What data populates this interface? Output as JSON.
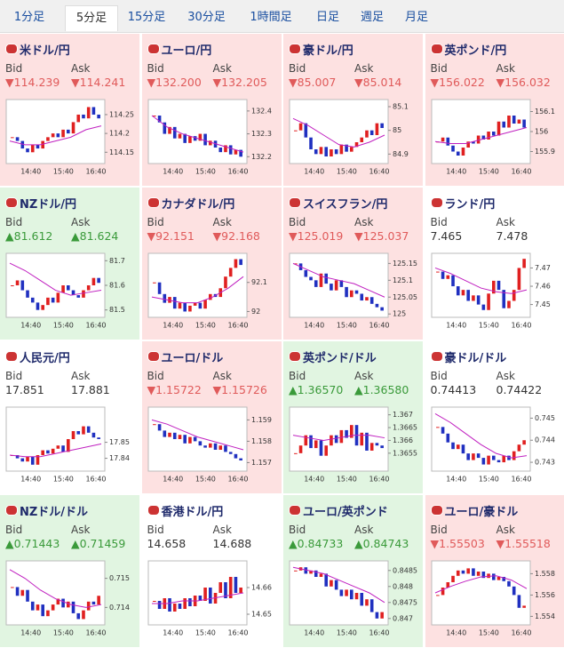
{
  "tabs": [
    "1分足",
    "5分足",
    "15分足",
    "30分足",
    "1時間足",
    "日足",
    "週足",
    "月足"
  ],
  "selected_tab": 1,
  "labels": {
    "bid": "Bid",
    "ask": "Ask"
  },
  "times": [
    "14:40",
    "15:40",
    "16:40"
  ],
  "tiles": [
    {
      "title": "米ドル/円",
      "bid": "▼114.239",
      "ask": "▼114.241",
      "trend": "down",
      "ylim": [
        114.12,
        114.29
      ],
      "yticks": [
        114.15,
        114.2,
        114.25
      ],
      "close": [
        114.19,
        114.18,
        114.16,
        114.15,
        114.17,
        114.16,
        114.18,
        114.19,
        114.2,
        114.19,
        114.21,
        114.2,
        114.23,
        114.25,
        114.24,
        114.27,
        114.25,
        114.24
      ],
      "ma": [
        114.18,
        114.17,
        114.17,
        114.18,
        114.19,
        114.21,
        114.22
      ]
    },
    {
      "title": "ユーロ/円",
      "bid": "▼132.200",
      "ask": "▼132.205",
      "trend": "down",
      "ylim": [
        132.17,
        132.45
      ],
      "yticks": [
        132.2,
        132.3,
        132.4
      ],
      "close": [
        132.38,
        132.35,
        132.3,
        132.33,
        132.28,
        132.3,
        132.26,
        132.29,
        132.27,
        132.3,
        132.25,
        132.27,
        132.24,
        132.22,
        132.25,
        132.21,
        132.23,
        132.2
      ],
      "ma": [
        132.38,
        132.33,
        132.3,
        132.28,
        132.26,
        132.24,
        132.22
      ]
    },
    {
      "title": "豪ドル/円",
      "bid": "▼85.007",
      "ask": "▼85.014",
      "trend": "down",
      "ylim": [
        84.86,
        85.13
      ],
      "yticks": [
        84.9,
        85,
        85.1
      ],
      "close": [
        85.0,
        85.03,
        84.97,
        84.92,
        84.9,
        84.93,
        84.89,
        84.92,
        84.9,
        84.94,
        84.91,
        84.93,
        84.95,
        84.97,
        85.0,
        84.98,
        85.03,
        85.01
      ],
      "ma": [
        85.05,
        85.02,
        84.98,
        84.94,
        84.93,
        84.95,
        84.98
      ]
    },
    {
      "title": "英ポンド/円",
      "bid": "▼156.022",
      "ask": "▼156.032",
      "trend": "down",
      "ylim": [
        155.84,
        156.16
      ],
      "yticks": [
        155.9,
        156,
        156.1
      ],
      "close": [
        155.95,
        155.97,
        155.93,
        155.9,
        155.88,
        155.92,
        155.95,
        155.94,
        155.98,
        155.96,
        156.0,
        155.98,
        156.05,
        156.02,
        156.08,
        156.04,
        156.06,
        156.02
      ],
      "ma": [
        155.95,
        155.94,
        155.94,
        155.96,
        155.98,
        156.0,
        156.02
      ]
    },
    {
      "title": "NZドル/円",
      "bid": "▲81.612",
      "ask": "▲81.624",
      "trend": "up",
      "ylim": [
        81.47,
        81.73
      ],
      "yticks": [
        81.5,
        81.6,
        81.7
      ],
      "close": [
        81.6,
        81.62,
        81.58,
        81.55,
        81.53,
        81.5,
        81.52,
        81.55,
        81.53,
        81.57,
        81.6,
        81.58,
        81.56,
        81.55,
        81.58,
        81.6,
        81.63,
        81.61
      ],
      "ma": [
        81.69,
        81.66,
        81.62,
        81.58,
        81.56,
        81.57,
        81.58
      ]
    },
    {
      "title": "カナダドル/円",
      "bid": "▼92.151",
      "ask": "▼92.168",
      "trend": "down",
      "ylim": [
        91.98,
        92.2
      ],
      "yticks": [
        92,
        92.1
      ],
      "close": [
        92.1,
        92.06,
        92.03,
        92.05,
        92.01,
        92.03,
        92.0,
        92.02,
        92.03,
        92.01,
        92.04,
        92.06,
        92.05,
        92.08,
        92.12,
        92.15,
        92.18,
        92.16
      ],
      "ma": [
        92.05,
        92.04,
        92.03,
        92.03,
        92.05,
        92.08,
        92.12
      ]
    },
    {
      "title": "スイスフラン/円",
      "bid": "▼125.019",
      "ask": "▼125.037",
      "trend": "down",
      "ylim": [
        124.99,
        125.18
      ],
      "yticks": [
        125,
        125.05,
        125.1,
        125.15
      ],
      "close": [
        125.15,
        125.13,
        125.11,
        125.1,
        125.08,
        125.12,
        125.09,
        125.07,
        125.1,
        125.08,
        125.05,
        125.07,
        125.06,
        125.04,
        125.05,
        125.03,
        125.02,
        125.01
      ],
      "ma": [
        125.15,
        125.13,
        125.11,
        125.1,
        125.09,
        125.07,
        125.05
      ]
    },
    {
      "title": "ランド/円",
      "bid": "7.465",
      "ask": "7.478",
      "trend": "flat",
      "ylim": [
        7.443,
        7.478
      ],
      "yticks": [
        7.45,
        7.46,
        7.47
      ],
      "close": [
        7.468,
        7.464,
        7.466,
        7.46,
        7.455,
        7.458,
        7.452,
        7.455,
        7.45,
        7.447,
        7.456,
        7.463,
        7.458,
        7.448,
        7.452,
        7.458,
        7.47,
        7.475
      ],
      "ma": [
        7.47,
        7.467,
        7.463,
        7.459,
        7.457,
        7.456,
        7.458
      ]
    },
    {
      "title": "人民元/円",
      "bid": "17.851",
      "ask": "17.881",
      "trend": "flat",
      "ylim": [
        17.832,
        17.872
      ],
      "yticks": [
        17.84,
        17.85
      ],
      "close": [
        17.842,
        17.84,
        17.838,
        17.841,
        17.836,
        17.842,
        17.845,
        17.843,
        17.846,
        17.848,
        17.844,
        17.852,
        17.857,
        17.855,
        17.86,
        17.856,
        17.853,
        17.852
      ],
      "ma": [
        17.842,
        17.841,
        17.841,
        17.843,
        17.845,
        17.847,
        17.849
      ]
    },
    {
      "title": "ユーロ/ドル",
      "bid": "▼1.15722",
      "ask": "▼1.15726",
      "trend": "down",
      "ylim": [
        1.1566,
        1.1596
      ],
      "yticks": [
        1.157,
        1.158,
        1.159
      ],
      "close": [
        1.1588,
        1.1585,
        1.1582,
        1.1584,
        1.1581,
        1.1583,
        1.1579,
        1.1582,
        1.158,
        1.1578,
        1.1577,
        1.1579,
        1.1576,
        1.1578,
        1.1575,
        1.1574,
        1.1572,
        1.1571
      ],
      "ma": [
        1.159,
        1.1588,
        1.1585,
        1.1582,
        1.158,
        1.1578,
        1.1576
      ]
    },
    {
      "title": "英ポンド/ドル",
      "bid": "▲1.36570",
      "ask": "▲1.36580",
      "trend": "up",
      "ylim": [
        1.3648,
        1.3673
      ],
      "yticks": [
        1.3655,
        1.366,
        1.3665,
        1.367
      ],
      "close": [
        1.3655,
        1.3658,
        1.3662,
        1.3657,
        1.366,
        1.3654,
        1.3658,
        1.3662,
        1.3659,
        1.3664,
        1.3661,
        1.3666,
        1.3658,
        1.3663,
        1.3656,
        1.3659,
        1.3658,
        1.3657
      ],
      "ma": [
        1.3662,
        1.3661,
        1.366,
        1.3661,
        1.3662,
        1.3662,
        1.3661
      ]
    },
    {
      "title": "豪ドル/ドル",
      "bid": "0.74413",
      "ask": "0.74422",
      "trend": "flat",
      "ylim": [
        0.7426,
        0.7455
      ],
      "yticks": [
        0.743,
        0.744,
        0.745
      ],
      "close": [
        0.7446,
        0.7443,
        0.7439,
        0.7436,
        0.7438,
        0.7434,
        0.7431,
        0.7434,
        0.7432,
        0.7429,
        0.7433,
        0.7431,
        0.743,
        0.7433,
        0.7431,
        0.7435,
        0.7438,
        0.744
      ],
      "ma": [
        0.7452,
        0.7448,
        0.7443,
        0.7438,
        0.7434,
        0.7432,
        0.7433
      ]
    },
    {
      "title": "NZドル/ドル",
      "bid": "▲0.71443",
      "ask": "▲0.71459",
      "trend": "up",
      "ylim": [
        0.7134,
        0.7156
      ],
      "yticks": [
        0.714,
        0.715
      ],
      "close": [
        0.7147,
        0.7144,
        0.7146,
        0.7142,
        0.7139,
        0.7141,
        0.7137,
        0.7139,
        0.7141,
        0.7143,
        0.714,
        0.7142,
        0.7138,
        0.7136,
        0.7139,
        0.7142,
        0.7141,
        0.7144
      ],
      "ma": [
        0.7153,
        0.715,
        0.7146,
        0.7143,
        0.7141,
        0.714,
        0.7141
      ]
    },
    {
      "title": "香港ドル/円",
      "bid": "14.658",
      "ask": "14.688",
      "trend": "flat",
      "ylim": [
        14.646,
        14.67
      ],
      "yticks": [
        14.65,
        14.66
      ],
      "close": [
        14.655,
        14.652,
        14.656,
        14.651,
        14.654,
        14.652,
        14.656,
        14.653,
        14.657,
        14.655,
        14.66,
        14.654,
        14.658,
        14.662,
        14.656,
        14.664,
        14.658,
        14.66
      ],
      "ma": [
        14.654,
        14.654,
        14.655,
        14.655,
        14.656,
        14.657,
        14.658
      ]
    },
    {
      "title": "ユーロ/英ポンド",
      "bid": "▲0.84733",
      "ask": "▲0.84743",
      "trend": "up",
      "ylim": [
        0.8468,
        0.8488
      ],
      "yticks": [
        0.847,
        0.8475,
        0.848,
        0.8485
      ],
      "close": [
        0.8485,
        0.8486,
        0.8484,
        0.8485,
        0.8483,
        0.8484,
        0.848,
        0.8482,
        0.8479,
        0.8477,
        0.8479,
        0.8476,
        0.8478,
        0.8474,
        0.8476,
        0.8472,
        0.847,
        0.8472
      ],
      "ma": [
        0.8486,
        0.8485,
        0.8484,
        0.8482,
        0.848,
        0.8478,
        0.8475
      ]
    },
    {
      "title": "ユーロ/豪ドル",
      "bid": "▼1.55503",
      "ask": "▼1.55518",
      "trend": "down",
      "ylim": [
        1.5532,
        1.5592
      ],
      "yticks": [
        1.554,
        1.556,
        1.558
      ],
      "close": [
        1.556,
        1.5567,
        1.5572,
        1.5578,
        1.5583,
        1.558,
        1.5585,
        1.5578,
        1.5582,
        1.5576,
        1.558,
        1.5574,
        1.5577,
        1.5573,
        1.5568,
        1.556,
        1.5548,
        1.555
      ],
      "ma": [
        1.5562,
        1.5568,
        1.5573,
        1.5577,
        1.5578,
        1.5574,
        1.5566
      ]
    }
  ]
}
